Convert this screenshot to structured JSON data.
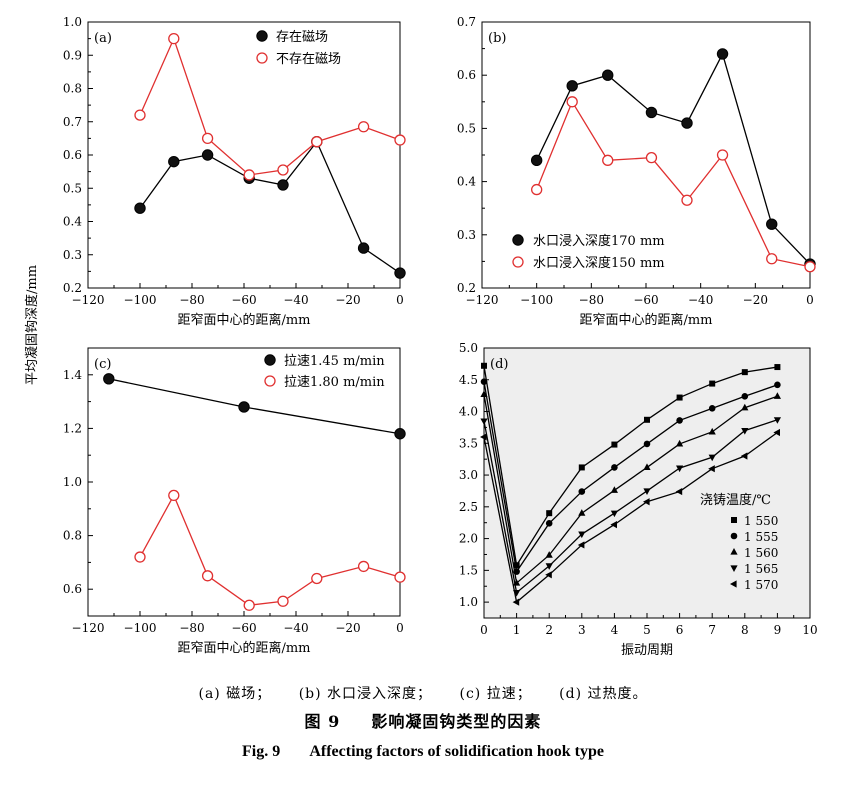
{
  "shared_ylabel": "平均凝固钩深度/mm",
  "chart_data": [
    {
      "panel": "(a)",
      "type": "line",
      "xlabel": "距窄面中心的距离/mm",
      "xlim": [
        -120,
        0
      ],
      "xticks": [
        -120,
        -100,
        -80,
        -60,
        -40,
        -20,
        0
      ],
      "ylim": [
        0.2,
        1.0
      ],
      "yticks": [
        "0.2",
        "0.3",
        "0.4",
        "0.5",
        "0.6",
        "0.7",
        "0.8",
        "0.9",
        "1.0"
      ],
      "legend_position": "top-right",
      "series": [
        {
          "name": "存在磁场",
          "marker": "filled-circle",
          "color": "#000000",
          "x": [
            -100,
            -87,
            -74,
            -58,
            -45,
            -32,
            -14,
            0
          ],
          "y": [
            0.44,
            0.58,
            0.6,
            0.53,
            0.51,
            0.64,
            0.32,
            0.245
          ]
        },
        {
          "name": "不存在磁场",
          "marker": "open-circle",
          "color": "#e03030",
          "x": [
            -100,
            -87,
            -74,
            -58,
            -45,
            -32,
            -14,
            0
          ],
          "y": [
            0.72,
            0.95,
            0.65,
            0.54,
            0.555,
            0.64,
            0.685,
            0.645
          ]
        }
      ]
    },
    {
      "panel": "(b)",
      "type": "line",
      "xlabel": "距窄面中心的距离/mm",
      "xlim": [
        -120,
        0
      ],
      "xticks": [
        -120,
        -100,
        -80,
        -60,
        -40,
        -20,
        0
      ],
      "ylim": [
        0.2,
        0.7
      ],
      "yticks": [
        "0.2",
        "0.3",
        "0.4",
        "0.5",
        "0.6",
        "0.7"
      ],
      "legend_position": "bottom-center",
      "series": [
        {
          "name": "水口浸入深度170 mm",
          "marker": "filled-circle",
          "color": "#000000",
          "x": [
            -100,
            -87,
            -74,
            -58,
            -45,
            -32,
            -14,
            0
          ],
          "y": [
            0.44,
            0.58,
            0.6,
            0.53,
            0.51,
            0.64,
            0.32,
            0.245
          ]
        },
        {
          "name": "水口浸入深度150 mm",
          "marker": "open-circle",
          "color": "#e03030",
          "x": [
            -100,
            -87,
            -74,
            -58,
            -45,
            -32,
            -14,
            0
          ],
          "y": [
            0.385,
            0.55,
            0.44,
            0.445,
            0.365,
            0.45,
            0.255,
            0.24
          ]
        }
      ]
    },
    {
      "panel": "(c)",
      "type": "line",
      "xlabel": "距窄面中心的距离/mm",
      "xlim": [
        -120,
        0
      ],
      "xticks": [
        -120,
        -100,
        -80,
        -60,
        -40,
        -20,
        0
      ],
      "ylim": [
        0.5,
        1.5
      ],
      "yticks": [
        "0.6",
        "0.8",
        "1.0",
        "1.2",
        "1.4"
      ],
      "legend_position": "top-right",
      "series": [
        {
          "name": "拉速1.45 m/min",
          "marker": "filled-circle",
          "color": "#000000",
          "x": [
            -112,
            -60,
            0
          ],
          "y": [
            1.385,
            1.28,
            1.18
          ]
        },
        {
          "name": "拉速1.80 m/min",
          "marker": "open-circle",
          "color": "#e03030",
          "x": [
            -100,
            -87,
            -74,
            -58,
            -45,
            -32,
            -14,
            0
          ],
          "y": [
            0.72,
            0.95,
            0.65,
            0.54,
            0.555,
            0.64,
            0.685,
            0.645
          ]
        }
      ]
    },
    {
      "panel": "(d)",
      "type": "line",
      "xlabel": "振动周期",
      "xlim": [
        0,
        10
      ],
      "xticks": [
        "0",
        "1",
        "2",
        "3",
        "4",
        "5",
        "6",
        "7",
        "8",
        "9",
        "10"
      ],
      "ylim": [
        0.75,
        5.0
      ],
      "yticks": [
        "1.0",
        "1.5",
        "2.0",
        "2.5",
        "3.0",
        "3.5",
        "4.0",
        "4.5",
        "5.0"
      ],
      "legend_title": "浇铸温度/℃",
      "legend_position": "right",
      "x": [
        0,
        1,
        2,
        3,
        4,
        5,
        6,
        7,
        8,
        9
      ],
      "series": [
        {
          "name": "1 550",
          "marker": "square",
          "color": "#000000",
          "y": [
            4.72,
            1.58,
            2.4,
            3.12,
            3.48,
            3.87,
            4.22,
            4.44,
            4.62,
            4.7
          ]
        },
        {
          "name": "1 555",
          "marker": "circle",
          "color": "#000000",
          "y": [
            4.47,
            1.48,
            2.24,
            2.74,
            3.12,
            3.49,
            3.86,
            4.05,
            4.24,
            4.42
          ]
        },
        {
          "name": "1 560",
          "marker": "triangle-up",
          "color": "#000000",
          "y": [
            4.27,
            1.3,
            1.74,
            2.4,
            2.76,
            3.12,
            3.49,
            3.68,
            4.06,
            4.24
          ]
        },
        {
          "name": "1 565",
          "marker": "triangle-down",
          "color": "#000000",
          "y": [
            3.85,
            1.15,
            1.57,
            2.07,
            2.4,
            2.75,
            3.11,
            3.28,
            3.7,
            3.87
          ]
        },
        {
          "name": "1 570",
          "marker": "triangle-left",
          "color": "#000000",
          "y": [
            3.6,
            1.0,
            1.43,
            1.9,
            2.22,
            2.58,
            2.74,
            3.1,
            3.3,
            3.67
          ]
        }
      ]
    }
  ],
  "captions": {
    "sub": [
      "(a) 磁场；",
      "(b) 水口浸入深度；",
      "(c) 拉速；",
      "(d) 过热度。"
    ],
    "zh_label": "图 9",
    "zh_title": "影响凝固钩类型的因素",
    "en_label": "Fig. 9",
    "en_title": "Affecting factors of solidification hook type"
  }
}
